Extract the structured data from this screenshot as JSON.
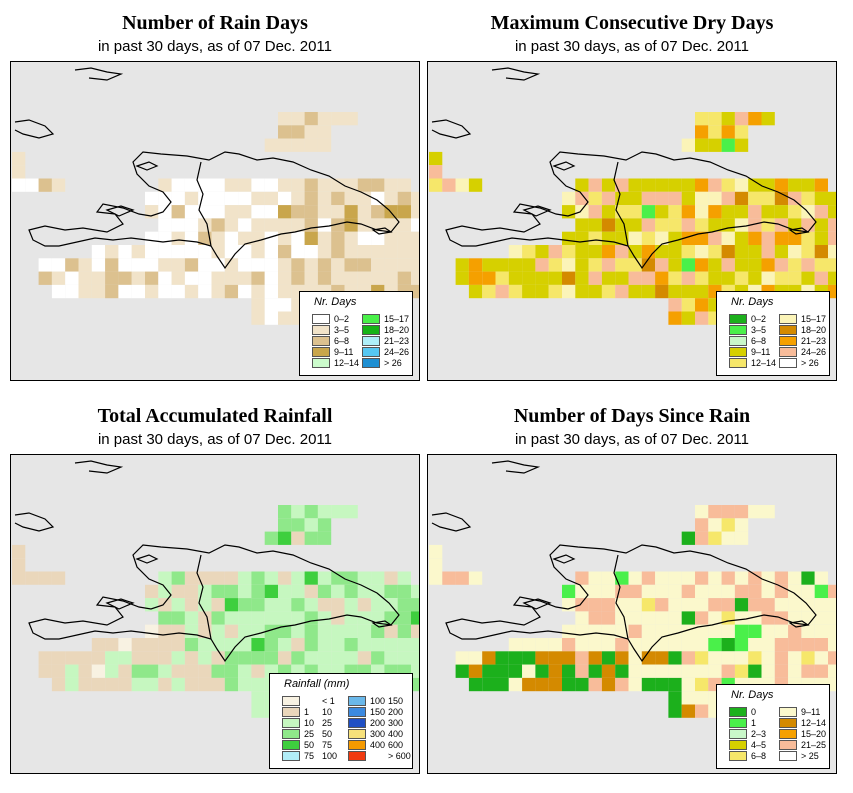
{
  "panels": [
    {
      "title": "Number of Rain Days",
      "subtitle": "in past 30 days, as of  07 Dec. 2011",
      "legend": {
        "title": "Nr. Days",
        "entries": [
          {
            "label": "0–2",
            "color": "#ffffff"
          },
          {
            "label": "3–5",
            "color": "#f1e3c9"
          },
          {
            "label": "6–8",
            "color": "#dcc18f"
          },
          {
            "label": "9–11",
            "color": "#c9a64c"
          },
          {
            "label": "12–14",
            "color": "#ccfccc"
          },
          {
            "label": "15–17",
            "color": "#49f049"
          },
          {
            "label": "18–20",
            "color": "#16b316"
          },
          {
            "label": "21–23",
            "color": "#aeeef8"
          },
          {
            "label": "24–26",
            "color": "#56c7f2"
          },
          {
            "label": "> 26",
            "color": "#1e8fd2"
          }
        ]
      }
    },
    {
      "title": "Maximum Consecutive Dry Days",
      "subtitle": "in past 30 days, as of  07 Dec. 2011",
      "legend": {
        "title": "Nr. Days",
        "entries": [
          {
            "label": "0–2",
            "color": "#1cb01c"
          },
          {
            "label": "3–5",
            "color": "#4af04a"
          },
          {
            "label": "6–8",
            "color": "#c9f8c9"
          },
          {
            "label": "9–11",
            "color": "#d6d000"
          },
          {
            "label": "12–14",
            "color": "#f6e76a"
          },
          {
            "label": "15–17",
            "color": "#fbf4b8"
          },
          {
            "label": "18–20",
            "color": "#d48a00"
          },
          {
            "label": "21–23",
            "color": "#f5a000"
          },
          {
            "label": "24–26",
            "color": "#f8bc9a"
          },
          {
            "label": "> 26",
            "color": "#ffffff"
          }
        ]
      }
    },
    {
      "title": "Total Accumulated Rainfall",
      "subtitle": "in past 30 days, as of  07 Dec. 2011",
      "legend": {
        "title": "Rainfall (mm)",
        "entries": [
          {
            "lo": "",
            "hi": "< 1",
            "color": "#f8f2e2"
          },
          {
            "lo": "1",
            "hi": "10",
            "color": "#ead7bb"
          },
          {
            "lo": "10",
            "hi": "25",
            "color": "#c6f7c0"
          },
          {
            "lo": "25",
            "hi": "50",
            "color": "#8fe88a"
          },
          {
            "lo": "50",
            "hi": "75",
            "color": "#3ecf3e"
          },
          {
            "lo": "75",
            "hi": "100",
            "color": "#b2eef8"
          },
          {
            "lo": "100",
            "hi": "150",
            "color": "#6ab8ea"
          },
          {
            "lo": "150",
            "hi": "200",
            "color": "#3c8ae0"
          },
          {
            "lo": "200",
            "hi": "300",
            "color": "#1f4fc4"
          },
          {
            "lo": "300",
            "hi": "400",
            "color": "#f7e17a"
          },
          {
            "lo": "400",
            "hi": "600",
            "color": "#f59a00"
          },
          {
            "lo": "",
            "hi": "> 600",
            "color": "#f03a10"
          }
        ]
      }
    },
    {
      "title": "Number of Days Since Rain",
      "subtitle": "in past 30 days, as of  07 Dec. 2011",
      "legend": {
        "title": "Nr. Days",
        "entries": [
          {
            "label": "0",
            "color": "#1cb01c"
          },
          {
            "label": "1",
            "color": "#4af04a"
          },
          {
            "label": "2–3",
            "color": "#c9f8c9"
          },
          {
            "label": "4–5",
            "color": "#d6d000"
          },
          {
            "label": "6–8",
            "color": "#f6e76a"
          },
          {
            "label": "9–11",
            "color": "#fbf8cc"
          },
          {
            "label": "12–14",
            "color": "#d48a00"
          },
          {
            "label": "15–20",
            "color": "#f5a000"
          },
          {
            "label": "21–25",
            "color": "#f8bc9a"
          },
          {
            "label": "> 25",
            "color": "#ffffff"
          }
        ]
      }
    }
  ]
}
